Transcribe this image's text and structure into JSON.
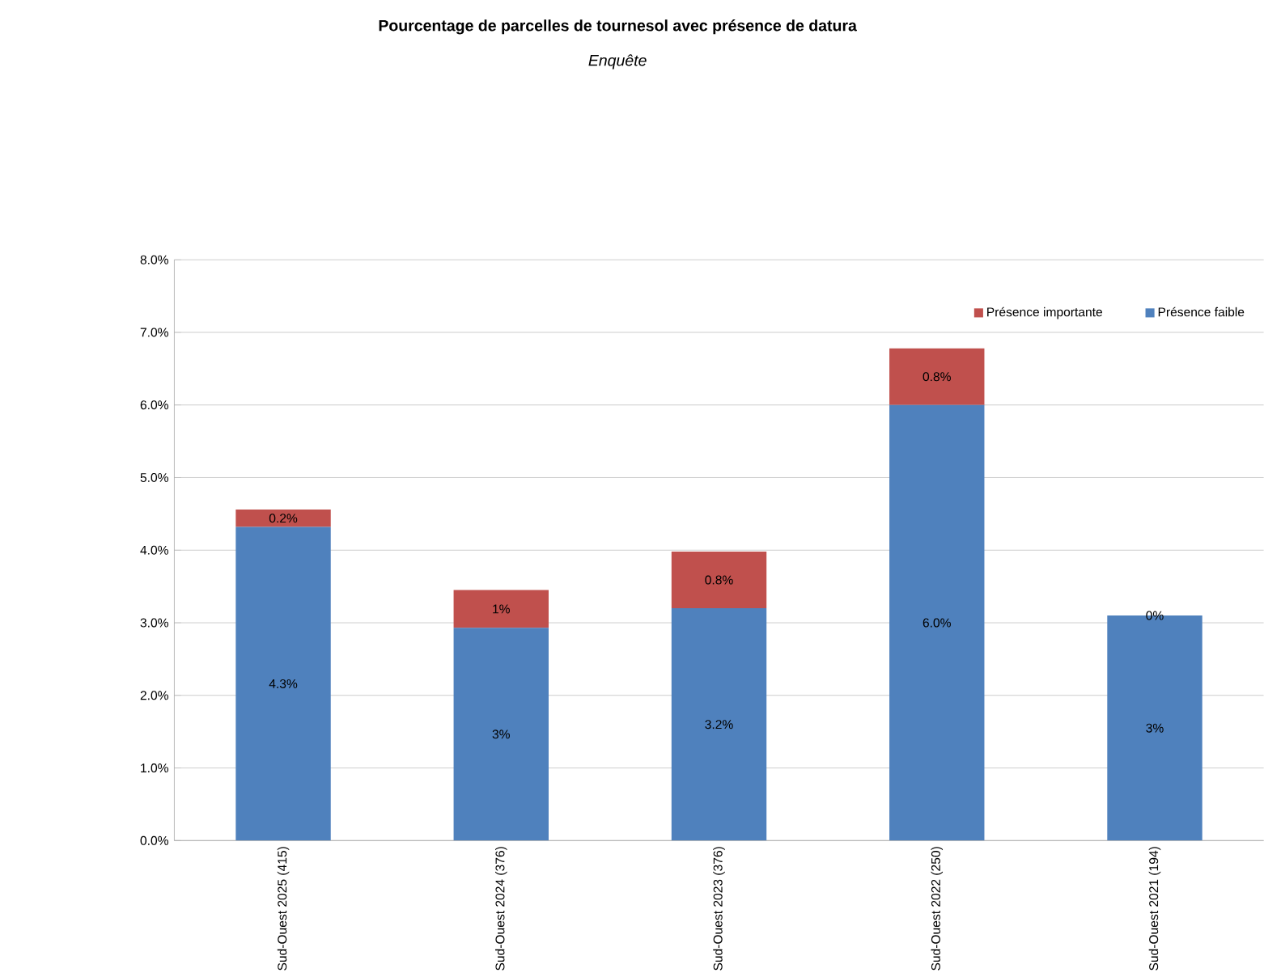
{
  "chart_data": {
    "type": "bar",
    "title": "Pourcentage de parcelles de tournesol avec présence de datura",
    "subtitle": "Enquête",
    "categories": [
      "Sud-Ouest 2025 (415)",
      "Sud-Ouest 2024 (376)",
      "Sud-Ouest 2023 (376)",
      "Sud-Ouest 2022 (250)",
      "Sud-Ouest 2021 (194)"
    ],
    "stacked": true,
    "series": [
      {
        "name": "Présence faible",
        "color": "#4f81bd",
        "values": [
          4.32,
          2.93,
          3.2,
          6.0,
          3.1
        ],
        "value_labels": [
          "4.3%",
          "3%",
          "3.2%",
          "6.0%",
          "3%"
        ]
      },
      {
        "name": "Présence importante",
        "color": "#c0504d",
        "values": [
          0.24,
          0.52,
          0.78,
          0.78,
          0.0
        ],
        "value_labels": [
          "0.2%",
          "1%",
          "0.8%",
          "0.8%",
          "0%"
        ]
      }
    ],
    "ylim": [
      0,
      8
    ],
    "yticks": [
      {
        "value": 0,
        "label": "0.0%"
      },
      {
        "value": 1,
        "label": "1.0%"
      },
      {
        "value": 2,
        "label": "2.0%"
      },
      {
        "value": 3,
        "label": "3.0%"
      },
      {
        "value": 4,
        "label": "4.0%"
      },
      {
        "value": 5,
        "label": "5.0%"
      },
      {
        "value": 6,
        "label": "6.0%"
      },
      {
        "value": 7,
        "label": "7.0%"
      },
      {
        "value": 8,
        "label": "8.0%"
      }
    ],
    "grid": "y",
    "legend": "top right"
  }
}
